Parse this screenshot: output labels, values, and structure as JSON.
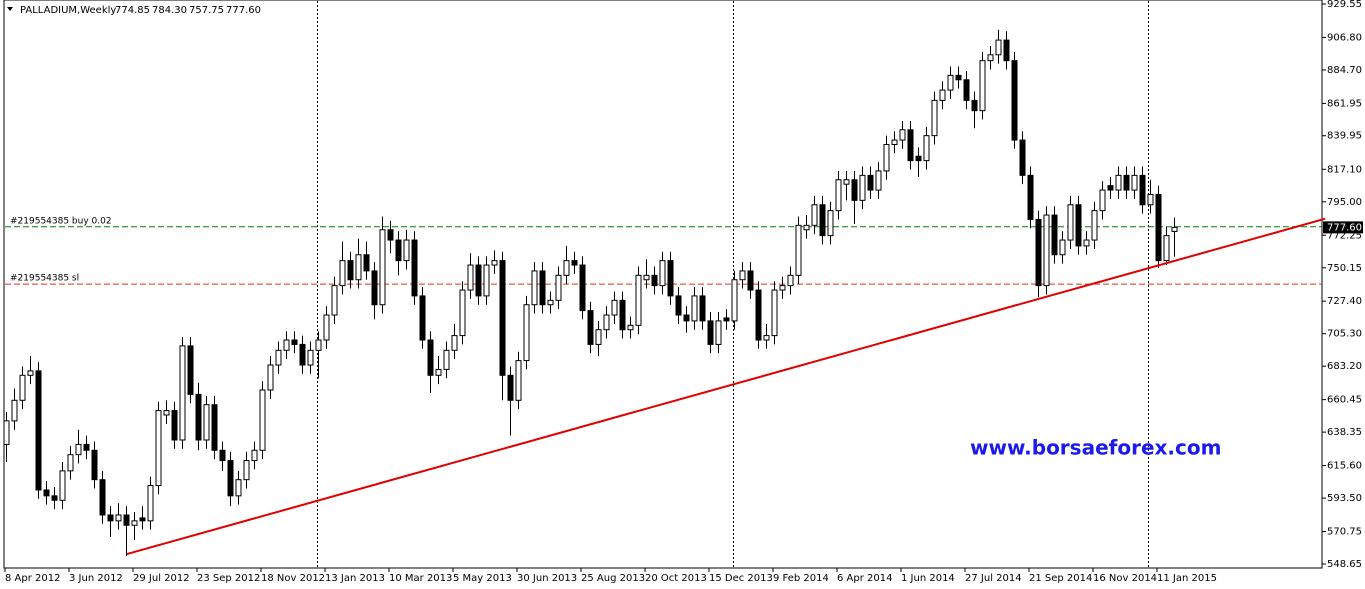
{
  "chart_data": {
    "type": "candlestick",
    "header": {
      "symbol": "PALLADIUM,Weekly",
      "ohlc": [
        "774.85",
        "784.30",
        "757.75",
        "777.60"
      ]
    },
    "categories": [
      "8 Apr 2012",
      null,
      null,
      null,
      null,
      null,
      null,
      null,
      "3 Jun 2012",
      null,
      null,
      null,
      null,
      null,
      null,
      null,
      "29 Jul 2012",
      null,
      null,
      null,
      null,
      null,
      null,
      null,
      "23 Sep 2012",
      null,
      null,
      null,
      null,
      null,
      null,
      null,
      "18 Nov 2012",
      null,
      null,
      null,
      null,
      null,
      null,
      null,
      "13 Jan 2013",
      null,
      null,
      null,
      null,
      null,
      null,
      null,
      "10 Mar 2013",
      null,
      null,
      null,
      null,
      null,
      null,
      null,
      "5 May 2013",
      null,
      null,
      null,
      null,
      null,
      null,
      null,
      "30 Jun 2013",
      null,
      null,
      null,
      null,
      null,
      null,
      null,
      "25 Aug 2013",
      null,
      null,
      null,
      null,
      null,
      null,
      null,
      "20 Oct 2013",
      null,
      null,
      null,
      null,
      null,
      null,
      null,
      "15 Dec 2013",
      null,
      null,
      null,
      null,
      null,
      null,
      null,
      "9 Feb 2014",
      null,
      null,
      null,
      null,
      null,
      null,
      null,
      "6 Apr 2014",
      null,
      null,
      null,
      null,
      null,
      null,
      null,
      "1 Jun 2014",
      null,
      null,
      null,
      null,
      null,
      null,
      null,
      "27 Jul 2014",
      null,
      null,
      null,
      null,
      null,
      null,
      null,
      "21 Sep 2014",
      null,
      null,
      null,
      null,
      null,
      null,
      null,
      "16 Nov 2014",
      null,
      null,
      null,
      null,
      null,
      null,
      null,
      "11 Jan 2015",
      null,
      null
    ],
    "open": [
      630,
      646,
      660,
      677,
      680,
      599,
      595,
      592,
      612,
      623,
      630,
      626,
      606,
      582,
      578,
      582,
      575,
      580,
      578,
      602,
      650,
      653,
      633,
      697,
      664,
      633,
      657,
      626,
      619,
      595,
      606,
      619,
      626,
      667,
      684,
      694,
      701,
      698,
      684,
      694,
      701,
      718,
      738,
      755,
      742,
      759,
      748,
      725,
      776,
      769,
      755,
      769,
      731,
      701,
      677,
      681,
      694,
      704,
      735,
      752,
      731,
      752,
      755,
      677,
      660,
      687,
      725,
      748,
      725,
      728,
      745,
      755,
      752,
      721,
      698,
      708,
      718,
      728,
      708,
      711,
      742,
      745,
      738,
      755,
      731,
      718,
      714,
      731,
      714,
      698,
      716,
      714,
      742,
      748,
      735,
      701,
      704,
      735,
      738,
      745,
      776,
      779,
      793,
      772,
      789,
      807,
      810,
      796,
      813,
      803,
      816,
      834,
      837,
      844,
      826,
      823,
      840,
      864,
      871,
      881,
      878,
      864,
      857,
      891,
      895,
      905,
      891,
      837,
      813,
      783,
      738,
      786,
      759,
      769,
      793,
      765,
      769,
      789,
      806,
      803,
      813,
      803,
      813,
      793,
      800,
      755,
      774.85
    ],
    "high": [
      652,
      668,
      683,
      690,
      686,
      605,
      601,
      618,
      629,
      640,
      636,
      632,
      612,
      588,
      590,
      588,
      584,
      588,
      608,
      659,
      660,
      659,
      703,
      703,
      672,
      663,
      663,
      632,
      625,
      612,
      625,
      632,
      673,
      690,
      700,
      707,
      707,
      704,
      700,
      707,
      724,
      744,
      768,
      761,
      770,
      768,
      754,
      785,
      782,
      775,
      776,
      775,
      737,
      707,
      690,
      700,
      712,
      741,
      760,
      758,
      758,
      762,
      761,
      683,
      693,
      731,
      754,
      754,
      734,
      751,
      765,
      761,
      758,
      727,
      714,
      724,
      734,
      734,
      717,
      751,
      756,
      751,
      761,
      761,
      737,
      724,
      737,
      737,
      720,
      720,
      722,
      748,
      754,
      754,
      741,
      712,
      741,
      744,
      751,
      785,
      786,
      799,
      799,
      795,
      816,
      816,
      816,
      819,
      819,
      822,
      840,
      843,
      850,
      850,
      832,
      846,
      870,
      877,
      887,
      887,
      884,
      870,
      897,
      901,
      912,
      911,
      897,
      843,
      819,
      789,
      792,
      792,
      775,
      799,
      799,
      775,
      795,
      809,
      812,
      819,
      819,
      819,
      819,
      810,
      806,
      778,
      784.3
    ],
    "low": [
      618,
      640,
      654,
      671,
      593,
      589,
      586,
      586,
      606,
      617,
      620,
      600,
      576,
      567,
      572,
      554,
      565,
      572,
      572,
      596,
      644,
      627,
      627,
      658,
      626,
      627,
      620,
      612,
      588,
      589,
      600,
      613,
      620,
      661,
      678,
      688,
      692,
      678,
      678,
      675,
      695,
      712,
      732,
      736,
      736,
      742,
      715,
      719,
      760,
      745,
      749,
      725,
      695,
      665,
      671,
      675,
      688,
      698,
      729,
      725,
      725,
      746,
      660,
      636,
      654,
      681,
      719,
      719,
      719,
      722,
      739,
      746,
      715,
      692,
      690,
      702,
      712,
      702,
      702,
      705,
      736,
      732,
      732,
      725,
      712,
      706,
      708,
      708,
      692,
      692,
      708,
      708,
      736,
      729,
      695,
      695,
      698,
      729,
      732,
      739,
      770,
      773,
      766,
      766,
      783,
      796,
      780,
      790,
      797,
      797,
      810,
      828,
      831,
      817,
      812,
      817,
      834,
      858,
      865,
      872,
      858,
      845,
      851,
      885,
      889,
      885,
      831,
      807,
      777,
      730,
      732,
      753,
      753,
      763,
      759,
      759,
      763,
      783,
      797,
      797,
      797,
      797,
      787,
      787,
      750,
      752,
      757.75
    ],
    "close": [
      646,
      660,
      677,
      680,
      599,
      595,
      592,
      612,
      623,
      630,
      626,
      606,
      582,
      578,
      582,
      575,
      578,
      578,
      602,
      653,
      653,
      633,
      697,
      664,
      633,
      657,
      626,
      619,
      595,
      606,
      619,
      626,
      667,
      684,
      694,
      701,
      698,
      684,
      694,
      701,
      718,
      738,
      755,
      742,
      759,
      748,
      725,
      776,
      769,
      755,
      769,
      731,
      701,
      677,
      681,
      694,
      704,
      735,
      752,
      731,
      752,
      755,
      677,
      660,
      687,
      725,
      748,
      725,
      728,
      745,
      755,
      752,
      721,
      698,
      708,
      718,
      728,
      708,
      711,
      745,
      745,
      738,
      755,
      731,
      718,
      714,
      731,
      714,
      698,
      714,
      714,
      742,
      748,
      735,
      701,
      704,
      735,
      738,
      745,
      779,
      779,
      793,
      772,
      789,
      810,
      810,
      796,
      813,
      803,
      816,
      834,
      837,
      844,
      823,
      823,
      840,
      864,
      871,
      881,
      878,
      864,
      857,
      891,
      895,
      905,
      891,
      837,
      813,
      783,
      738,
      786,
      759,
      769,
      793,
      765,
      769,
      789,
      803,
      803,
      813,
      803,
      813,
      793,
      800,
      755,
      772,
      777.6
    ],
    "up_color": "#ffffff",
    "down_color": "#000000",
    "wick_color": "#000000",
    "ylim": [
      545.93,
      932.27
    ],
    "yticks": [
      929.55,
      {
        "value": 906.8,
        "label": "906.80"
      },
      {
        "value": 884.7,
        "label": "884.70"
      },
      861.95,
      839.95,
      {
        "value": 817.1,
        "label": "817.10"
      },
      {
        "value": 795,
        "label": "795.00"
      },
      772.25,
      750.15,
      {
        "value": 727.4,
        "label": "727.40"
      },
      {
        "value": 705.3,
        "label": "705.30"
      },
      {
        "value": 683.2,
        "label": "683.20"
      },
      660.45,
      638.35,
      {
        "value": 615.6,
        "label": "615.60"
      },
      {
        "value": 593.5,
        "label": "593.50"
      },
      570.75,
      548.65
    ],
    "price_marker": {
      "value": 777.6,
      "label": "777.60"
    },
    "levels": [
      {
        "label": "#219554385 buy 0.02",
        "value": 778.0,
        "color": "#008000"
      },
      {
        "label": "#219554385 sl",
        "value": 739.0,
        "color": "#e03010"
      }
    ],
    "trendline": {
      "x": [
        15.1,
        164.9
      ],
      "y": [
        555.4,
        783.5
      ],
      "color": "#e00000"
    },
    "watermark": "www.borsaeforex.com"
  }
}
